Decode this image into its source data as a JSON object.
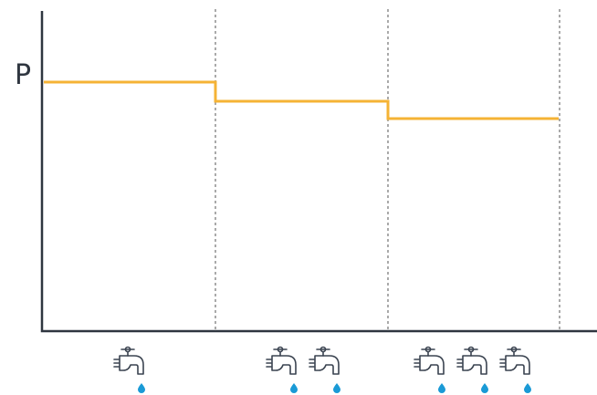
{
  "axis_label": "P"
}
